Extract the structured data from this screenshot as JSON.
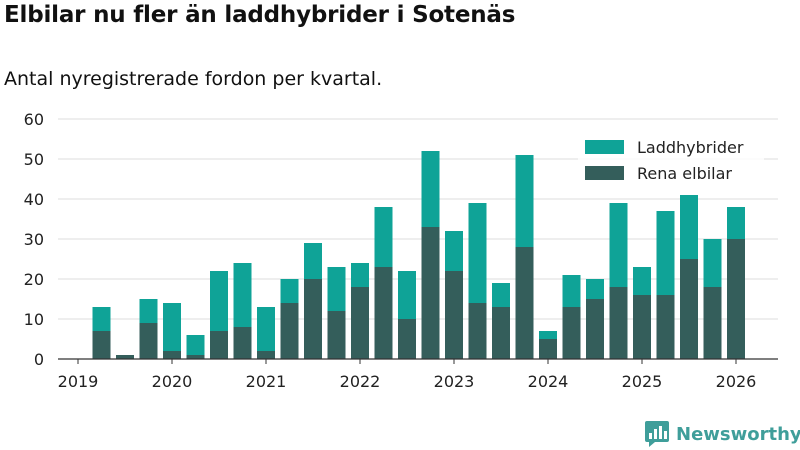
{
  "chart_data": {
    "type": "bar",
    "stacked": true,
    "title": "Elbilar nu fler än laddhybrider i Sotenäs",
    "subtitle": "Antal nyregistrerade fordon per kvartal.",
    "xlabel": "",
    "ylabel": "",
    "ylim": [
      0,
      60
    ],
    "yticks": [
      0,
      10,
      20,
      30,
      40,
      50,
      60
    ],
    "xticks": [
      "2019",
      "2020",
      "2021",
      "2022",
      "2023",
      "2024",
      "2025",
      "2026"
    ],
    "grid": true,
    "legend_position": "top-right",
    "categories": [
      "2019 Q1",
      "2019 Q2",
      "2019 Q3",
      "2019 Q4",
      "2020 Q1",
      "2020 Q2",
      "2020 Q3",
      "2020 Q4",
      "2021 Q1",
      "2021 Q2",
      "2021 Q3",
      "2021 Q4",
      "2022 Q1",
      "2022 Q2",
      "2022 Q3",
      "2022 Q4",
      "2023 Q1",
      "2023 Q2",
      "2023 Q3",
      "2023 Q4",
      "2024 Q1",
      "2024 Q2",
      "2024 Q3",
      "2024 Q4",
      "2025 Q1",
      "2025 Q2",
      "2025 Q3",
      "2025 Q4",
      "2026 Q1"
    ],
    "series": [
      {
        "name": "Rena elbilar",
        "color": "#345e5b",
        "values": [
          0,
          7,
          1,
          9,
          2,
          1,
          7,
          8,
          2,
          14,
          20,
          12,
          18,
          23,
          10,
          33,
          22,
          14,
          13,
          28,
          5,
          13,
          15,
          18,
          16,
          16,
          25,
          18,
          30
        ]
      },
      {
        "name": "Laddhybrider",
        "color": "#0fa397",
        "values": [
          0,
          6,
          0,
          6,
          12,
          5,
          15,
          16,
          11,
          6,
          9,
          11,
          6,
          15,
          12,
          19,
          10,
          25,
          6,
          23,
          2,
          8,
          5,
          21,
          7,
          21,
          16,
          12,
          8
        ]
      }
    ]
  },
  "brand": {
    "name": "Newsworthy",
    "color": "#3f9e9a",
    "icon": "newsworthy-logo-icon"
  }
}
